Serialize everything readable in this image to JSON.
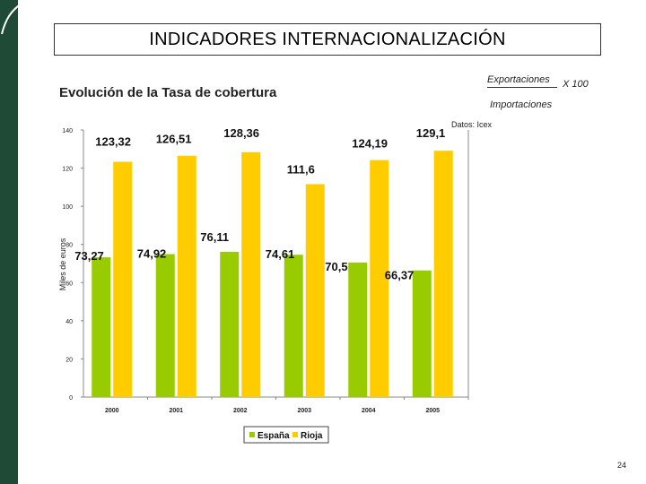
{
  "slide": {
    "title": "INDICADORES INTERNACIONALIZACIÓN",
    "subtitle": "Evolución de la Tasa de cobertura",
    "formula": {
      "numerator": "Exportaciones",
      "denominator": "Importaciones",
      "multiplier": "X  100"
    },
    "page_number": "24"
  },
  "colors": {
    "sidebar": "#1e4a36",
    "espana": "#99cc00",
    "rioja": "#ffcc00"
  },
  "chart_data": {
    "type": "bar",
    "title": "",
    "source_note": "Datos: Icex",
    "xlabel": "",
    "ylabel": "Miles de euros",
    "ylim": [
      0,
      140
    ],
    "yticks": [
      0,
      20,
      40,
      60,
      80,
      100,
      120,
      140
    ],
    "ytick_labels": [
      "0",
      "20",
      "40",
      "60",
      "80",
      "100",
      "120",
      "140"
    ],
    "categories": [
      "2000",
      "2001",
      "2002",
      "2003",
      "2004",
      "2005"
    ],
    "series": [
      {
        "name": "España",
        "color": "#99cc00",
        "values": [
          73.27,
          74.92,
          76.11,
          74.61,
          70.5,
          66.37
        ],
        "labels": [
          "73,27",
          "74,92",
          "76,11",
          "74,61",
          "70,5",
          "66,37"
        ]
      },
      {
        "name": "Rioja",
        "color": "#ffcc00",
        "values": [
          123.32,
          126.51,
          128.36,
          111.6,
          124.19,
          129.1
        ],
        "labels": [
          "123,32",
          "126,51",
          "128,36",
          "111,6",
          "124,19",
          "129,1"
        ]
      }
    ],
    "legend": [
      "España",
      "Rioja"
    ],
    "legend_position": "bottom"
  }
}
